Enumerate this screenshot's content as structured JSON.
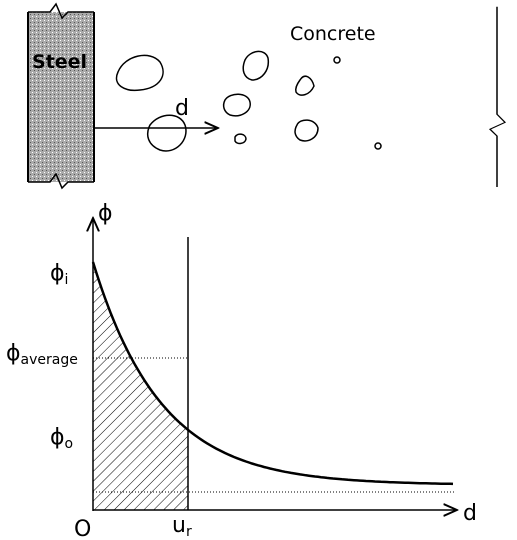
{
  "top": {
    "steel": "Steel",
    "concrete": "Concrete",
    "distance": "d"
  },
  "graph": {
    "y_axis": "ϕ",
    "x_axis": "d",
    "origin": "O",
    "levels": [
      {
        "symbol": "ϕ",
        "subscript": "i"
      },
      {
        "symbol": "ϕ",
        "subscript": "average"
      },
      {
        "symbol": "ϕ",
        "subscript": "o"
      }
    ],
    "radius": {
      "symbol": "u",
      "subscript": "r"
    }
  }
}
